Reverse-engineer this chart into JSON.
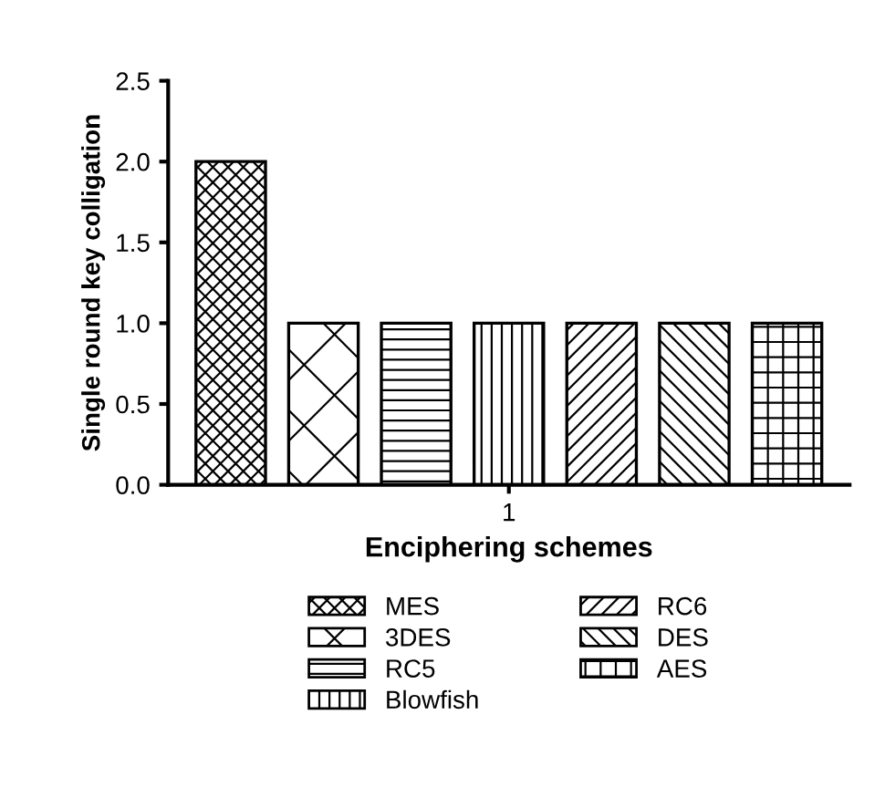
{
  "chart_data": {
    "type": "bar",
    "xlabel": "Enciphering schemes",
    "ylabel": "Single round key colligation",
    "categories": [
      "1"
    ],
    "series": [
      {
        "name": "MES",
        "color": "#000000",
        "values": [
          2.0
        ]
      },
      {
        "name": "3DES",
        "color": "#000000",
        "values": [
          1.0
        ]
      },
      {
        "name": "RC5",
        "color": "#000000",
        "values": [
          1.0
        ]
      },
      {
        "name": "Blowfish",
        "color": "#000000",
        "values": [
          1.0
        ]
      },
      {
        "name": "RC6",
        "color": "#000000",
        "values": [
          1.0
        ]
      },
      {
        "name": "DES",
        "color": "#000000",
        "values": [
          1.0
        ]
      },
      {
        "name": "AES",
        "color": "#000000",
        "values": [
          1.0
        ]
      }
    ],
    "ylim": [
      0,
      2.5
    ],
    "yticks": [
      {
        "value": 0,
        "label": "0.0"
      },
      {
        "value": 0.5,
        "label": "0.5"
      },
      {
        "value": 1,
        "label": "1.0"
      },
      {
        "value": 1.5,
        "label": "1.5"
      },
      {
        "value": 2,
        "label": "2.0"
      },
      {
        "value": 2.5,
        "label": "2.5"
      }
    ],
    "grid": false,
    "legend": "bottom"
  }
}
